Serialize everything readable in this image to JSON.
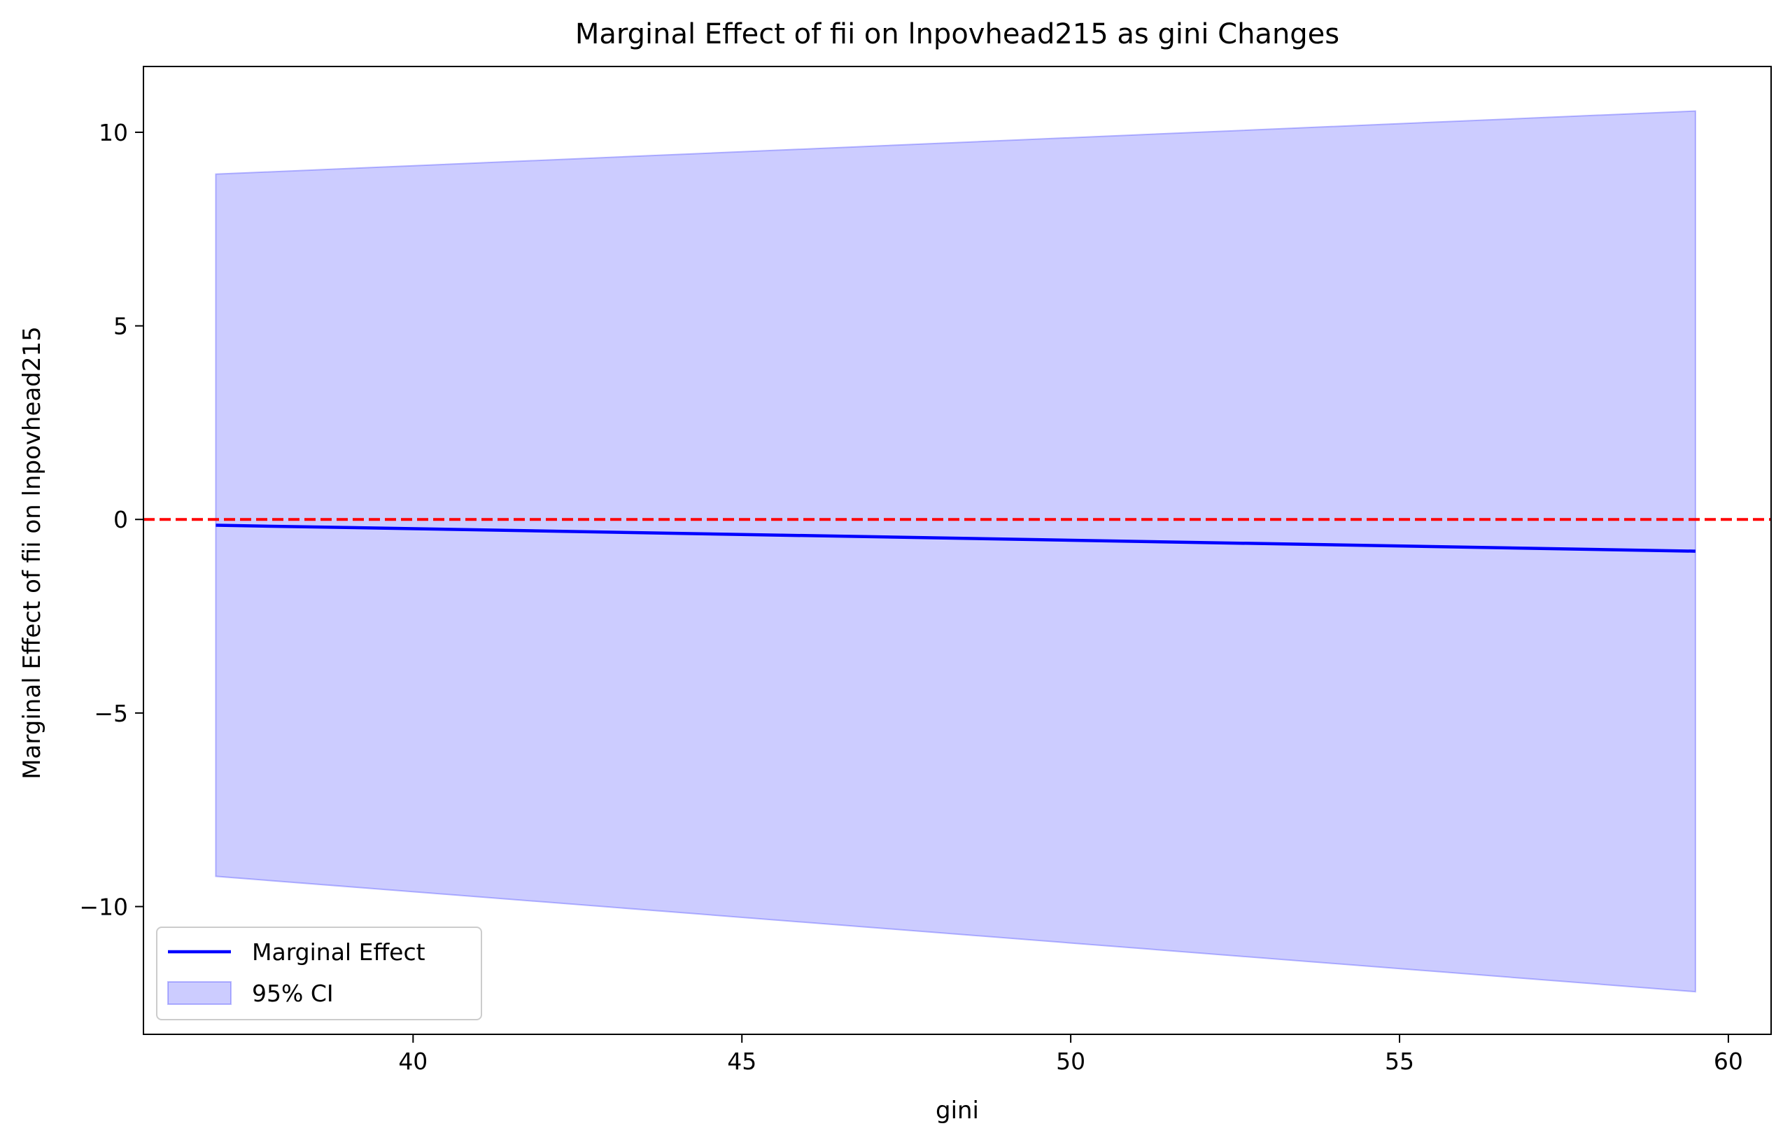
{
  "chart_data": {
    "type": "line",
    "title": "Marginal Effect of fii on lnpovhead215 as gini Changes",
    "xlabel": "gini",
    "ylabel": "Marginal Effect of fii on lnpovhead215",
    "xlim": [
      35.9,
      60.65
    ],
    "ylim": [
      -13.3,
      11.7
    ],
    "xticks": [
      40,
      45,
      50,
      55,
      60
    ],
    "xtick_labels": [
      "40",
      "45",
      "50",
      "55",
      "60"
    ],
    "yticks": [
      -10,
      -5,
      0,
      5,
      10
    ],
    "ytick_labels": [
      "−10",
      "−5",
      "0",
      "5",
      "10"
    ],
    "grid": false,
    "legend_position": "lower-left",
    "series": [
      {
        "name": "Marginal Effect",
        "kind": "line",
        "color": "#0000ff",
        "x": [
          37.0,
          59.5
        ],
        "y": [
          -0.15,
          -0.82
        ]
      },
      {
        "name": "95% CI",
        "kind": "band",
        "color": "#0000ff",
        "fill_opacity": 0.2,
        "x": [
          37.0,
          59.5
        ],
        "lower": [
          -9.22,
          -12.2
        ],
        "upper": [
          8.92,
          10.55
        ]
      }
    ],
    "reference_lines": [
      {
        "orientation": "horizontal",
        "y": 0,
        "color": "#ff0000",
        "style": "dashed"
      }
    ]
  }
}
